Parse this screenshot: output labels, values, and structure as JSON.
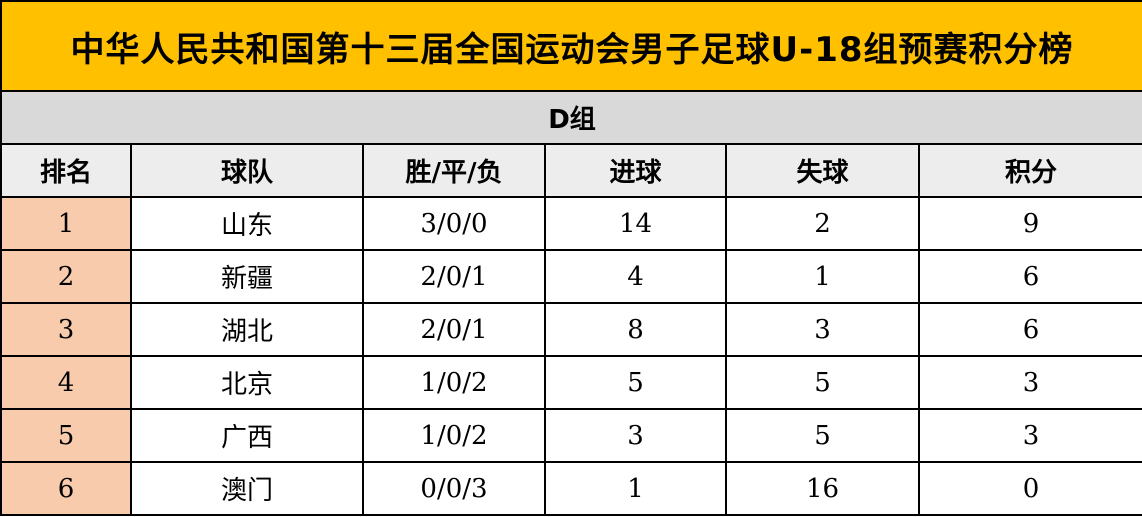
{
  "title": "中华人民共和国第十三届全国运动会男子足球U-18组预赛积分榜",
  "group": "D组",
  "columns": [
    "排名",
    "球队",
    "胜/平/负",
    "进球",
    "失球",
    "积分"
  ],
  "rows": [
    [
      "1",
      "山东",
      "3/0/0",
      "14",
      "2",
      "9"
    ],
    [
      "2",
      "新疆",
      "2/0/1",
      "4",
      "1",
      "6"
    ],
    [
      "3",
      "湖北",
      "2/0/1",
      "8",
      "3",
      "6"
    ],
    [
      "4",
      "北京",
      "1/0/2",
      "5",
      "5",
      "3"
    ],
    [
      "5",
      "广西",
      "1/0/2",
      "3",
      "5",
      "3"
    ],
    [
      "6",
      "澳门",
      "0/0/3",
      "1",
      "16",
      "0"
    ]
  ],
  "colors": {
    "title_bg": "#FFC000",
    "group_bg": "#D9D9D9",
    "header_bg": "#EDEDED",
    "rank_bg": "#F8CBAD"
  }
}
